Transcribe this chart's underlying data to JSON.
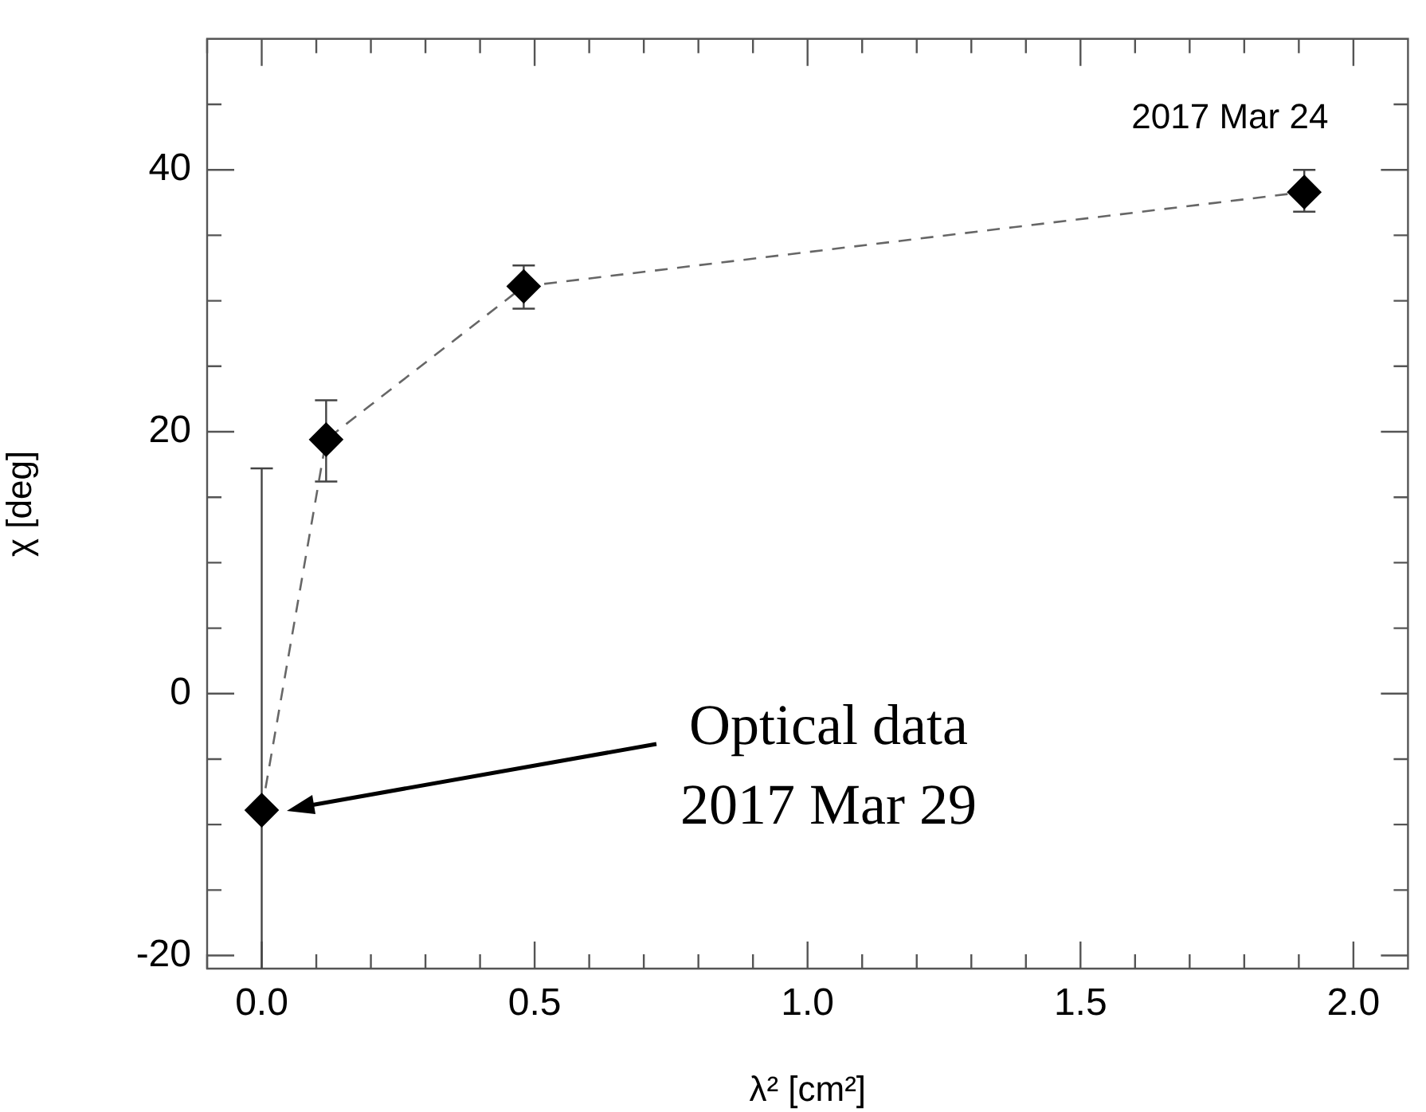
{
  "chart_data": {
    "type": "line",
    "xlabel": "λ² [cm²]",
    "ylabel": "χ [deg]",
    "x": [
      0.0,
      0.118,
      0.48,
      1.91
    ],
    "series": [
      {
        "color": "#000000",
        "values": [
          -8.9,
          19.4,
          31.1,
          38.3
        ],
        "errors": [
          [
            -21,
            17.2
          ],
          [
            16.2,
            22.4
          ],
          [
            29.4,
            32.7
          ],
          [
            36.8,
            40.0
          ]
        ]
      }
    ],
    "xlim": [
      -0.1,
      2.1
    ],
    "xticks": [
      {
        "value": -0.1,
        "label": null
      },
      {
        "value": 0.0,
        "label": "0.0"
      },
      {
        "value": 0.1,
        "label": null
      },
      {
        "value": 0.2,
        "label": null
      },
      {
        "value": 0.3,
        "label": null
      },
      {
        "value": 0.4,
        "label": null
      },
      0.5,
      {
        "value": 0.6,
        "label": null
      },
      {
        "value": 0.7,
        "label": null
      },
      {
        "value": 0.8,
        "label": null
      },
      {
        "value": 0.9,
        "label": null
      },
      {
        "value": 1.0,
        "label": "1.0"
      },
      {
        "value": 1.1,
        "label": null
      },
      {
        "value": 1.2,
        "label": null
      },
      {
        "value": 1.3,
        "label": null
      },
      {
        "value": 1.4,
        "label": null
      },
      1.5,
      {
        "value": 1.6,
        "label": null
      },
      {
        "value": 1.7,
        "label": null
      },
      {
        "value": 1.8,
        "label": null
      },
      {
        "value": 1.9,
        "label": null
      },
      {
        "value": 2.0,
        "label": "2.0"
      }
    ],
    "ylim": [
      -21,
      50
    ],
    "yticks": [
      -20,
      {
        "value": -15,
        "label": null
      },
      {
        "value": -10,
        "label": null
      },
      {
        "value": -5,
        "label": null
      },
      0,
      {
        "value": 5,
        "label": null
      },
      {
        "value": 10,
        "label": null
      },
      {
        "value": 15,
        "label": null
      },
      20,
      {
        "value": 25,
        "label": null
      },
      {
        "value": 30,
        "label": null
      },
      {
        "value": 35,
        "label": null
      },
      40,
      {
        "value": 45,
        "label": null
      }
    ],
    "annotations": [
      "2017 Mar 24",
      "Optical data\n2017 Mar 29"
    ],
    "grid": false,
    "legend": false,
    "marker": "diamond",
    "line_style": "dashed"
  }
}
